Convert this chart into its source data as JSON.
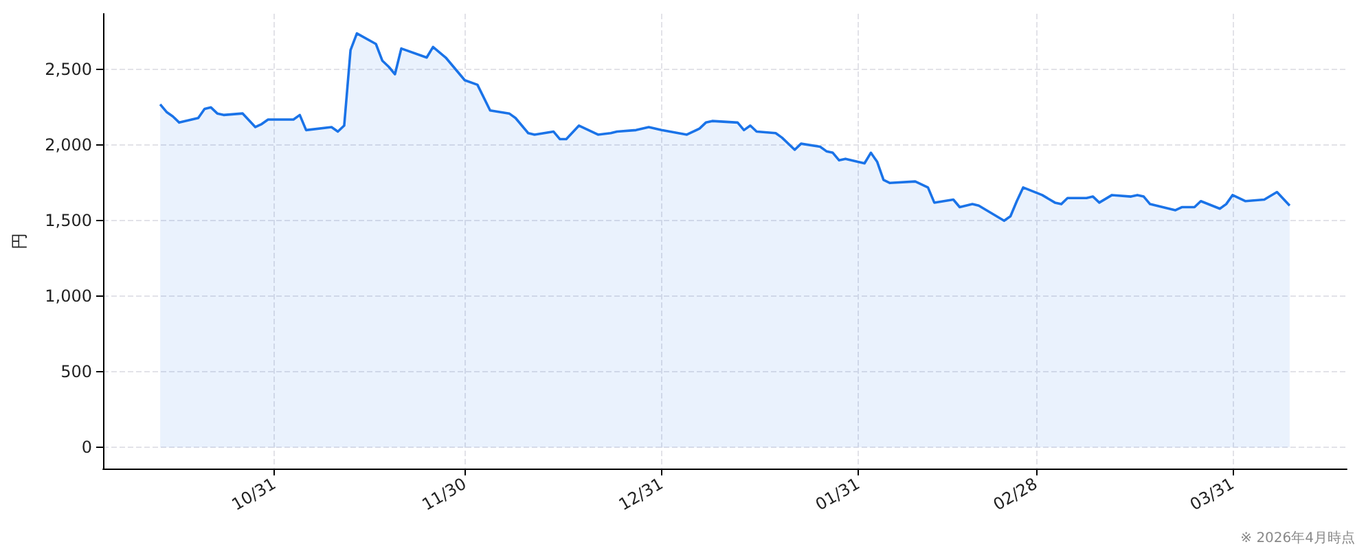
{
  "chart_data": {
    "type": "area",
    "ylabel": "円",
    "annotations": [
      "※ 2026年4月時点"
    ],
    "x": [
      "2025-10-13",
      "2025-10-14",
      "2025-10-15",
      "2025-10-16",
      "2025-10-19",
      "2025-10-20",
      "2025-10-21",
      "2025-10-22",
      "2025-10-23",
      "2025-10-26",
      "2025-10-28",
      "2025-10-29",
      "2025-10-30",
      "2025-11-03",
      "2025-11-04",
      "2025-11-05",
      "2025-11-09",
      "2025-11-10",
      "2025-11-11",
      "2025-11-12",
      "2025-11-13",
      "2025-11-16",
      "2025-11-17",
      "2025-11-18",
      "2025-11-19",
      "2025-11-20",
      "2025-11-24",
      "2025-11-25",
      "2025-11-27",
      "2025-11-30",
      "2025-12-02",
      "2025-12-04",
      "2025-12-07",
      "2025-12-08",
      "2025-12-10",
      "2025-12-11",
      "2025-12-14",
      "2025-12-15",
      "2025-12-16",
      "2025-12-18",
      "2025-12-21",
      "2025-12-23",
      "2025-12-24",
      "2025-12-27",
      "2025-12-29",
      "2025-12-31",
      "2026-01-04",
      "2026-01-06",
      "2026-01-07",
      "2026-01-08",
      "2026-01-12",
      "2026-01-13",
      "2026-01-14",
      "2026-01-15",
      "2026-01-18",
      "2026-01-19",
      "2026-01-21",
      "2026-01-22",
      "2026-01-25",
      "2026-01-26",
      "2026-01-27",
      "2026-01-28",
      "2026-01-29",
      "2026-02-01",
      "2026-02-02",
      "2026-02-03",
      "2026-02-04",
      "2026-02-05",
      "2026-02-09",
      "2026-02-11",
      "2026-02-12",
      "2026-02-15",
      "2026-02-16",
      "2026-02-18",
      "2026-02-19",
      "2026-02-23",
      "2026-02-24",
      "2026-02-25",
      "2026-02-26",
      "2026-03-01",
      "2026-03-03",
      "2026-03-04",
      "2026-03-05",
      "2026-03-08",
      "2026-03-09",
      "2026-03-10",
      "2026-03-12",
      "2026-03-15",
      "2026-03-16",
      "2026-03-17",
      "2026-03-18",
      "2026-03-22",
      "2026-03-23",
      "2026-03-25",
      "2026-03-26",
      "2026-03-29",
      "2026-03-30",
      "2026-03-31",
      "2026-04-02",
      "2026-04-05",
      "2026-04-07",
      "2026-04-09"
    ],
    "series": [
      {
        "color": "#1a73e8",
        "values": [
          2270,
          2220,
          2190,
          2150,
          2180,
          2240,
          2250,
          2210,
          2200,
          2210,
          2120,
          2140,
          2170,
          2170,
          2200,
          2100,
          2120,
          2090,
          2130,
          2630,
          2740,
          2670,
          2560,
          2520,
          2470,
          2640,
          2580,
          2650,
          2580,
          2430,
          2400,
          2230,
          2210,
          2180,
          2080,
          2070,
          2090,
          2040,
          2040,
          2130,
          2070,
          2080,
          2090,
          2100,
          2120,
          2100,
          2070,
          2110,
          2150,
          2160,
          2150,
          2100,
          2130,
          2090,
          2080,
          2050,
          1970,
          2010,
          1990,
          1960,
          1950,
          1900,
          1910,
          1880,
          1950,
          1890,
          1770,
          1750,
          1760,
          1720,
          1620,
          1640,
          1590,
          1610,
          1600,
          1500,
          1530,
          1630,
          1720,
          1670,
          1620,
          1610,
          1650,
          1650,
          1660,
          1620,
          1670,
          1660,
          1670,
          1660,
          1610,
          1570,
          1590,
          1590,
          1630,
          1580,
          1610,
          1670,
          1630,
          1640,
          1690,
          1600
        ]
      }
    ],
    "xlim": [
      "2025-10-04",
      "2026-04-18"
    ],
    "xticks": [
      {
        "value": "2025-10-31",
        "label": "10/31"
      },
      {
        "value": "2025-11-30",
        "label": "11/30"
      },
      {
        "value": "2025-12-31",
        "label": "12/31"
      },
      {
        "value": "2026-01-31",
        "label": "01/31"
      },
      {
        "value": "2026-02-28",
        "label": "02/28"
      },
      {
        "value": "2026-03-31",
        "label": "03/31"
      }
    ],
    "ylim": [
      -140,
      2870
    ],
    "yticks": [
      {
        "value": 0,
        "label": "0"
      },
      {
        "value": 500,
        "label": "500"
      },
      {
        "value": 1000,
        "label": "1,000"
      },
      {
        "value": 1500,
        "label": "1,500"
      },
      {
        "value": 2000,
        "label": "2,000"
      },
      {
        "value": 2500,
        "label": "2,500"
      }
    ],
    "grid": true
  }
}
